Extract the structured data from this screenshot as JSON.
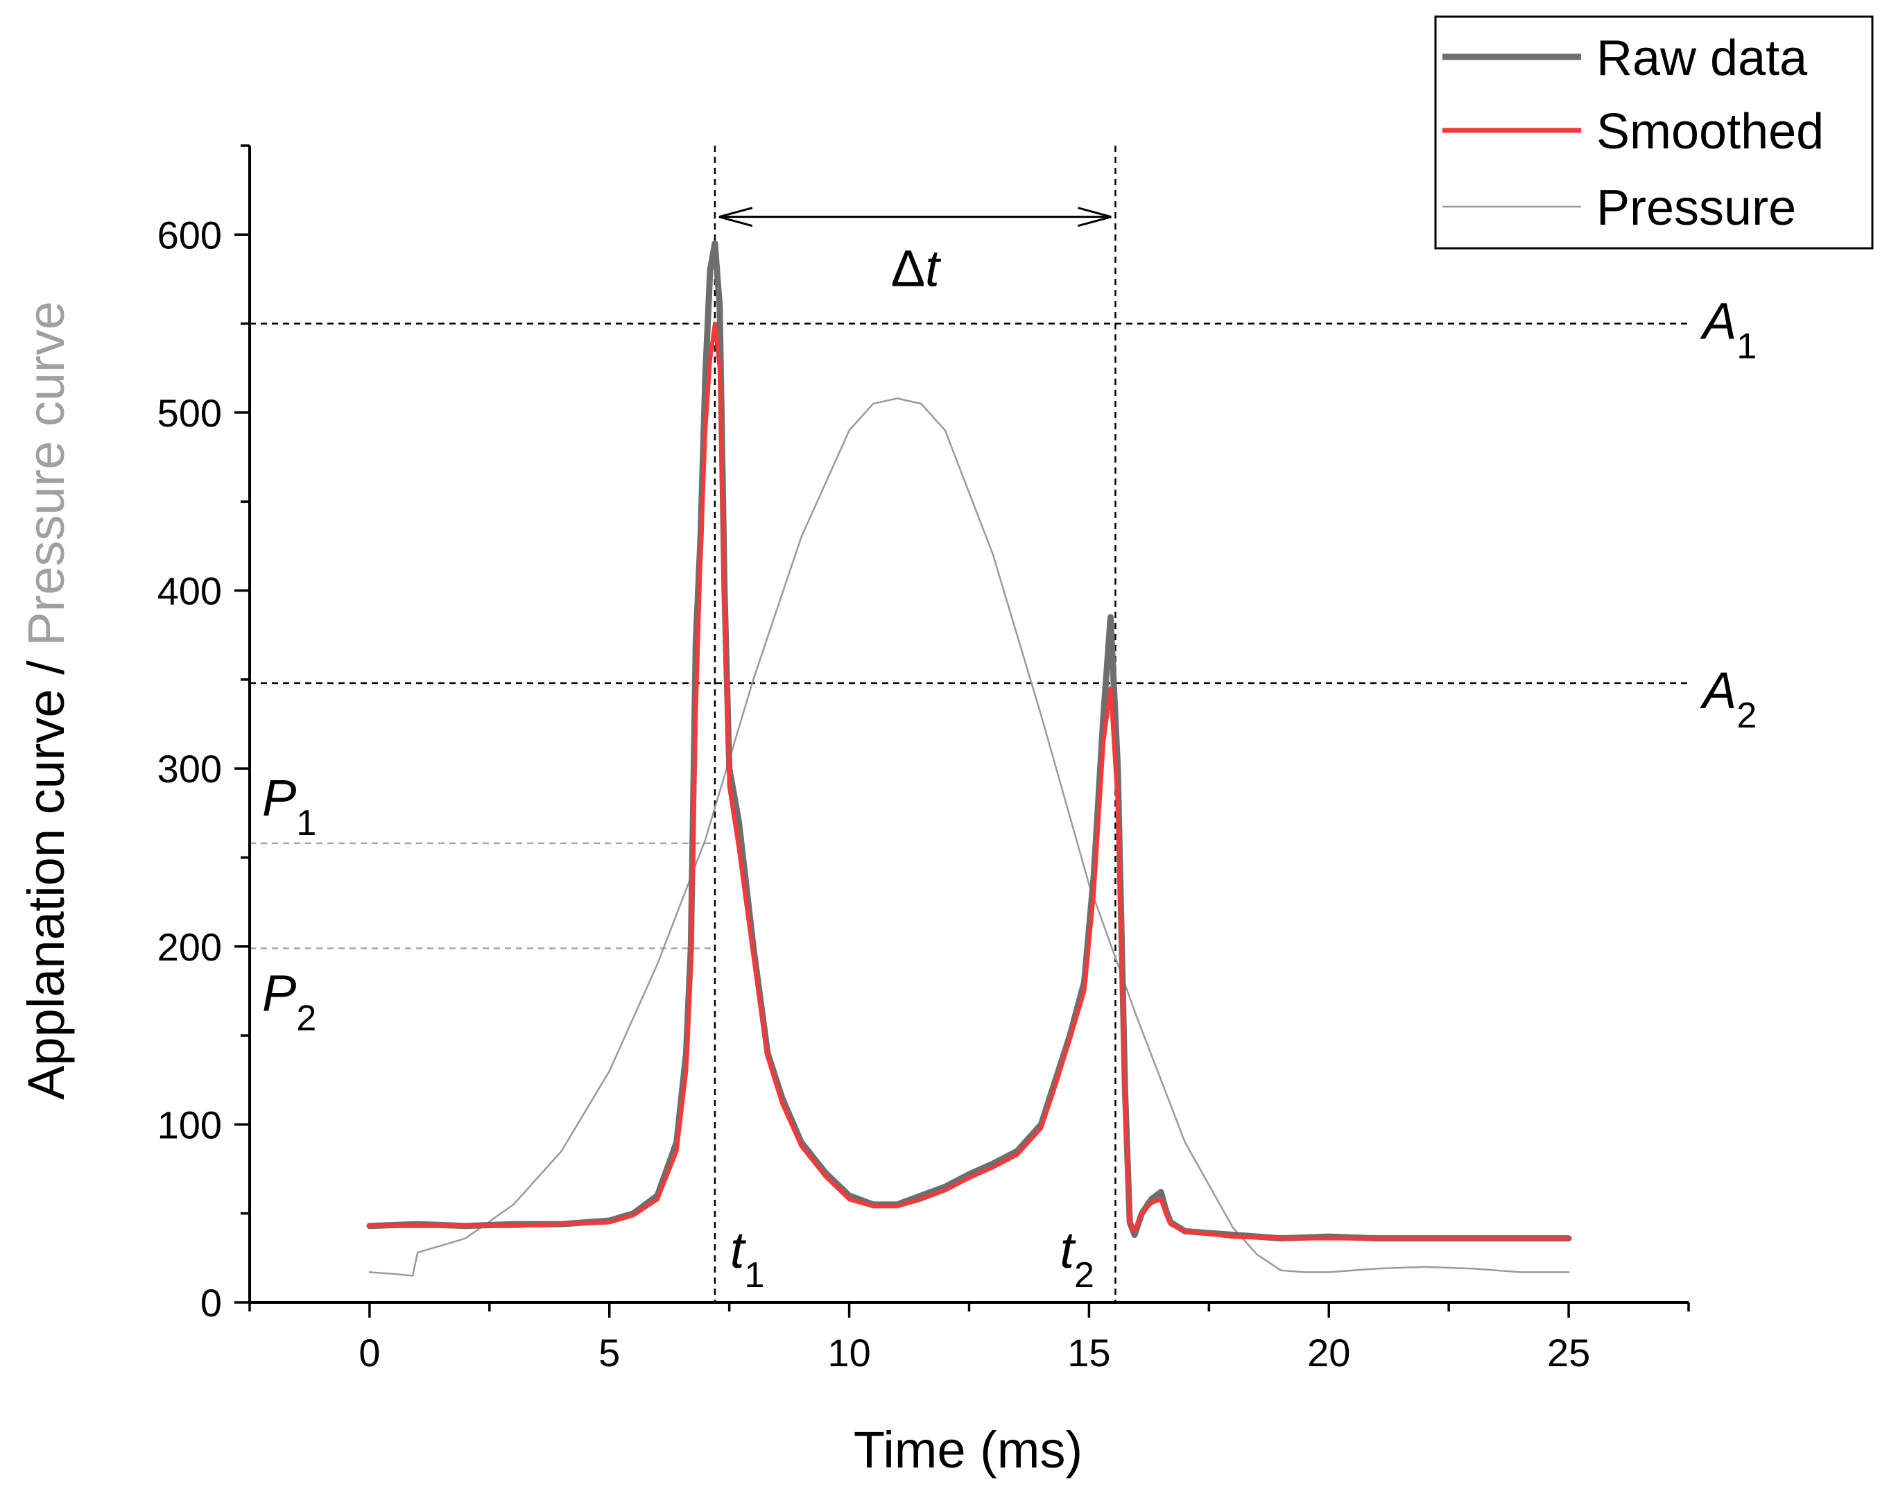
{
  "chart_data": {
    "type": "line",
    "xlabel": "Time (ms)",
    "ylabel_part1": "Applanation curve / ",
    "ylabel_part2": "Pressure curve",
    "xlim": [
      -2.5,
      27.5
    ],
    "ylim": [
      0,
      650
    ],
    "x_ticks": [
      0,
      5,
      10,
      15,
      20,
      25
    ],
    "x_tick_labels": [
      "0",
      "5",
      "10",
      "15",
      "20",
      "25"
    ],
    "y_ticks": [
      0,
      100,
      200,
      300,
      400,
      500,
      600
    ],
    "y_tick_labels": [
      "0",
      "100",
      "200",
      "300",
      "400",
      "500",
      "600"
    ],
    "colors": {
      "raw": "#6e6e6e",
      "smoothed": "#f23a3a",
      "pressure": "#9a9a9a",
      "p_lines": "#a8a8a8"
    },
    "series": [
      {
        "name": "Raw data",
        "x": [
          0,
          1,
          2,
          3,
          4,
          5,
          5.5,
          6,
          6.4,
          6.6,
          6.7,
          6.8,
          6.9,
          7.0,
          7.1,
          7.2,
          7.3,
          7.4,
          7.5,
          7.7,
          8.0,
          8.3,
          8.6,
          9.0,
          9.5,
          10.0,
          10.5,
          11.0,
          11.5,
          12.0,
          12.5,
          13.0,
          13.5,
          14.0,
          14.3,
          14.6,
          14.9,
          15.1,
          15.3,
          15.45,
          15.6,
          15.75,
          15.85,
          15.95,
          16.1,
          16.3,
          16.5,
          16.6,
          16.7,
          17.0,
          18.0,
          19.0,
          20.0,
          21.0,
          22.0,
          23.0,
          24.0,
          25.0
        ],
        "values": [
          43,
          44,
          43,
          44,
          44,
          46,
          50,
          60,
          90,
          140,
          200,
          370,
          430,
          520,
          580,
          595,
          560,
          400,
          300,
          270,
          200,
          140,
          115,
          90,
          73,
          60,
          55,
          55,
          60,
          65,
          72,
          78,
          85,
          100,
          125,
          150,
          180,
          240,
          330,
          385,
          300,
          120,
          45,
          38,
          50,
          58,
          62,
          52,
          45,
          40,
          38,
          36,
          37,
          36,
          36,
          36,
          36,
          36
        ]
      },
      {
        "name": "Smoothed",
        "x": [
          0,
          1,
          2,
          3,
          4,
          5,
          5.5,
          6,
          6.4,
          6.6,
          6.7,
          6.8,
          6.9,
          7.0,
          7.1,
          7.2,
          7.3,
          7.4,
          7.5,
          7.7,
          8.0,
          8.3,
          8.6,
          9.0,
          9.5,
          10.0,
          10.5,
          11.0,
          11.5,
          12.0,
          12.5,
          13.0,
          13.5,
          14.0,
          14.3,
          14.6,
          14.9,
          15.1,
          15.3,
          15.45,
          15.6,
          15.75,
          15.85,
          15.95,
          16.1,
          16.3,
          16.5,
          16.6,
          16.7,
          17.0,
          18.0,
          19.0,
          20.0,
          21.0,
          22.0,
          23.0,
          24.0,
          25.0
        ],
        "values": [
          43,
          43,
          43,
          43,
          44,
          45,
          49,
          58,
          85,
          130,
          190,
          330,
          420,
          490,
          530,
          550,
          525,
          390,
          290,
          255,
          195,
          138,
          112,
          88,
          71,
          58,
          54,
          54,
          58,
          63,
          70,
          76,
          83,
          98,
          122,
          148,
          175,
          230,
          315,
          345,
          280,
          110,
          45,
          40,
          50,
          56,
          58,
          50,
          44,
          40,
          37,
          36,
          36,
          36,
          36,
          36,
          36,
          36
        ]
      },
      {
        "name": "Pressure",
        "x": [
          0,
          0.5,
          0.9,
          1.0,
          1.5,
          2,
          3,
          4,
          5,
          6,
          7,
          8,
          9,
          10,
          10.5,
          11,
          11.5,
          12,
          13,
          14,
          15,
          16,
          17,
          18,
          18.5,
          19,
          19.5,
          20,
          21,
          22,
          23,
          24,
          25
        ],
        "values": [
          17,
          16,
          15,
          28,
          32,
          36,
          55,
          85,
          130,
          190,
          260,
          350,
          430,
          490,
          505,
          508,
          505,
          490,
          420,
          330,
          235,
          160,
          90,
          42,
          27,
          18,
          17,
          17,
          19,
          20,
          19,
          17,
          17
        ]
      }
    ],
    "reference_lines": {
      "A1": 550,
      "A2": 348,
      "P1": 258,
      "P2": 199,
      "t1": 7.2,
      "t2": 15.55
    },
    "annotations": {
      "delta_t_symbol": "Δ",
      "delta_t_var": "t",
      "A1_var": "A",
      "A1_sub": "1",
      "A2_var": "A",
      "A2_sub": "2",
      "P1_var": "P",
      "P1_sub": "1",
      "P2_var": "P",
      "P2_sub": "2",
      "t1_var": "t",
      "t1_sub": "1",
      "t2_var": "t",
      "t2_sub": "2"
    },
    "legend": {
      "position": "top-right",
      "entries": [
        "Raw data",
        "Smoothed",
        "Pressure"
      ]
    }
  }
}
